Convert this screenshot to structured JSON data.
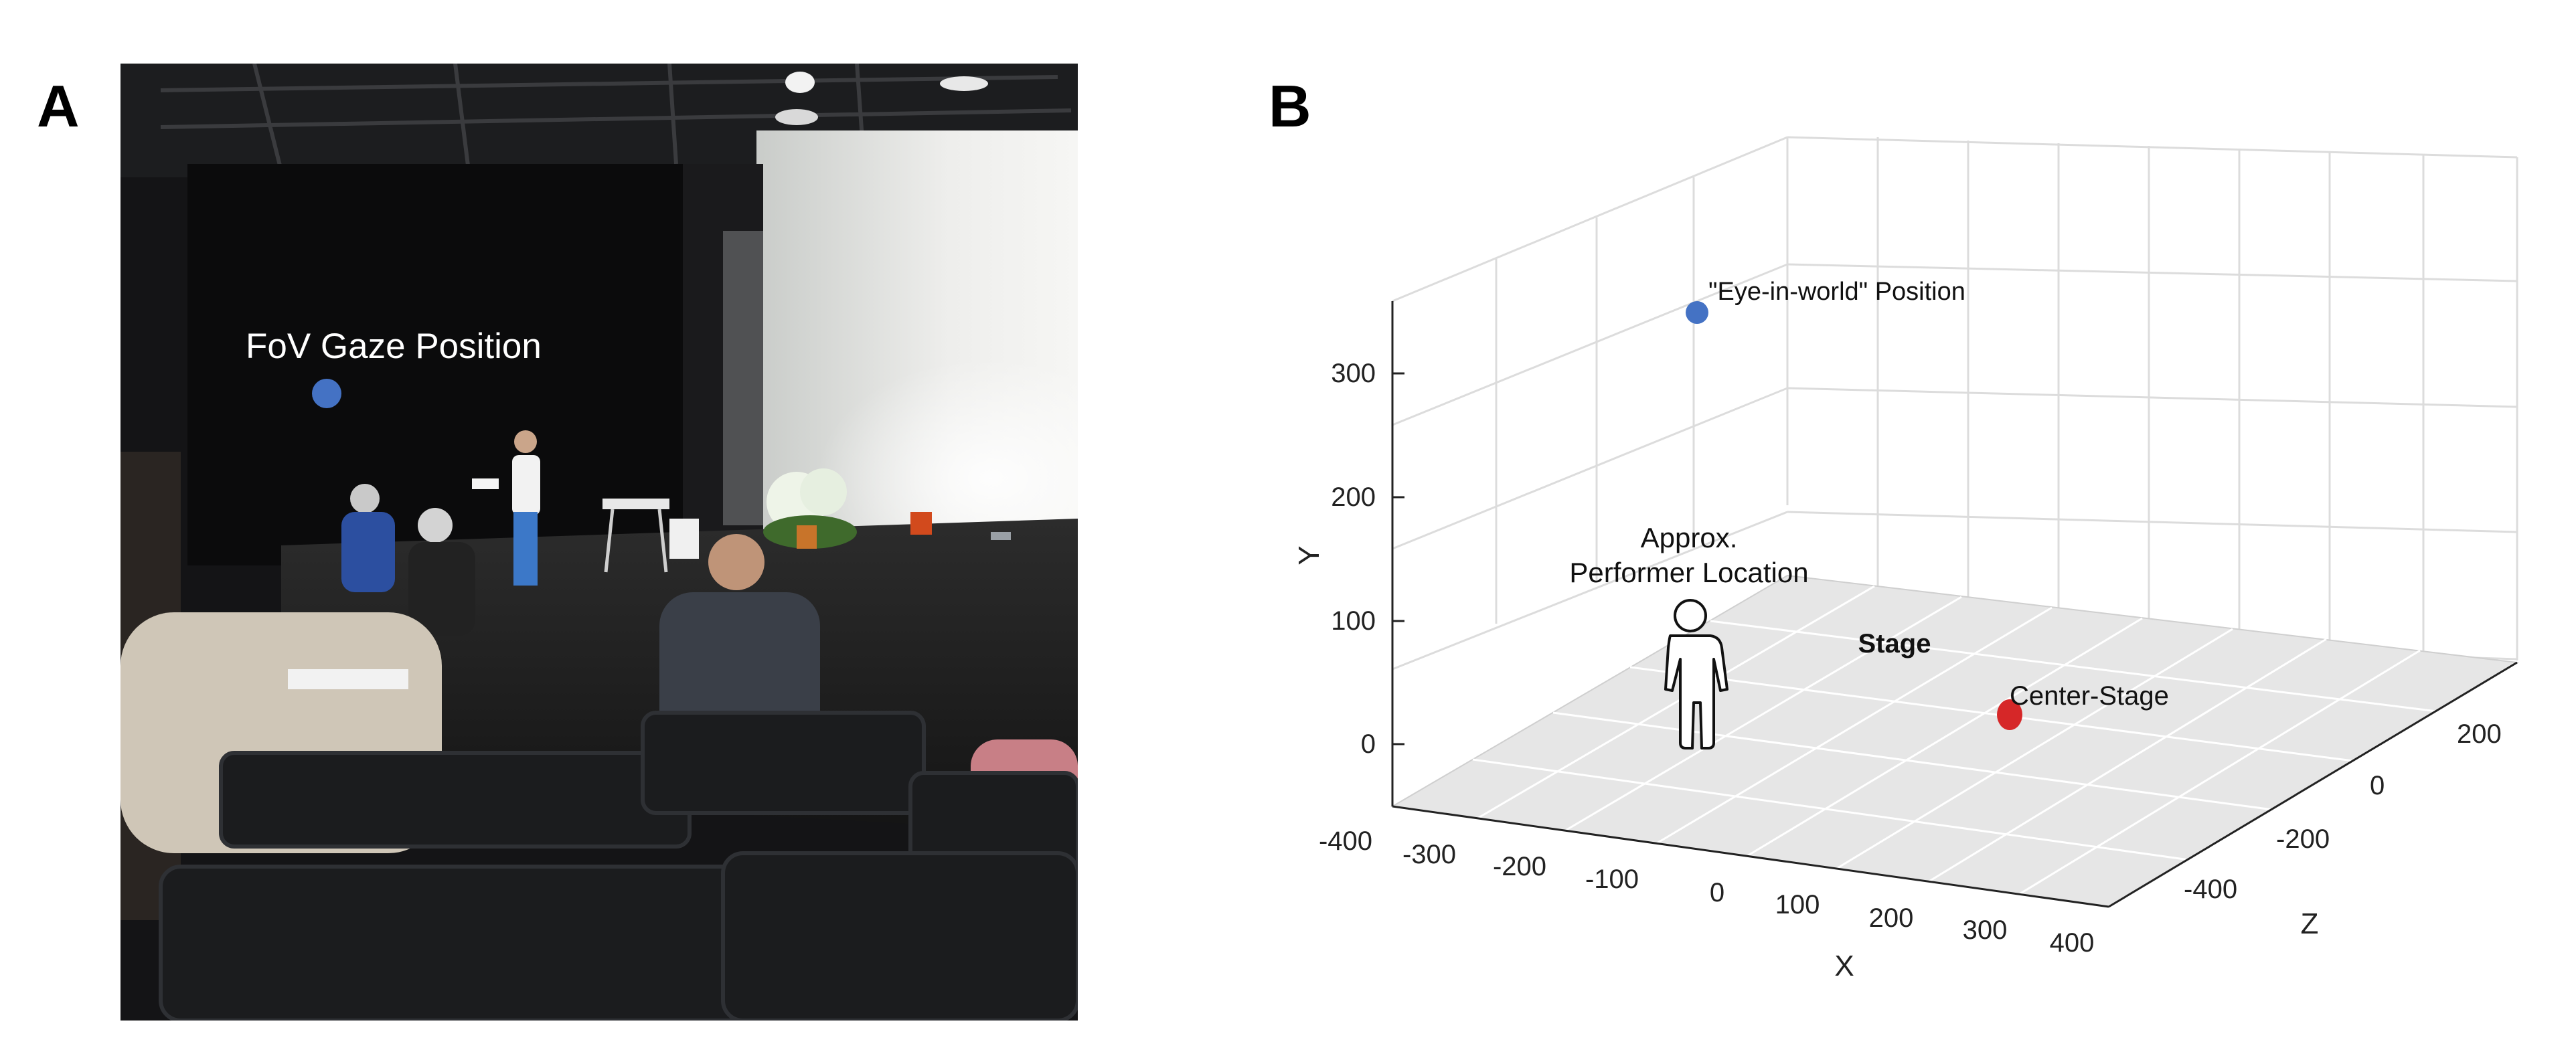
{
  "panel_a": {
    "letter": "A",
    "gaze_label": "FoV Gaze Position",
    "gaze_marker_color": "#4472c4"
  },
  "panel_b": {
    "letter": "B",
    "x_label": "X",
    "y_label": "Y",
    "z_label": "Z",
    "x_ticks": [
      "-300",
      "-200",
      "-100",
      "0",
      "100",
      "200",
      "300",
      "400"
    ],
    "y_ticks": [
      "0",
      "100",
      "200",
      "300"
    ],
    "z_ticks": [
      "-400",
      "-200",
      "0",
      "200"
    ],
    "x_axis_corner_tick": "-400",
    "eye_label": "\"Eye-in-world\" Position",
    "performer_label_line1": "Approx.",
    "performer_label_line2": "Performer Location",
    "stage_label": "Stage",
    "center_label": "Center-Stage",
    "eye_color": "#4472c4",
    "center_color": "#d62728"
  }
}
